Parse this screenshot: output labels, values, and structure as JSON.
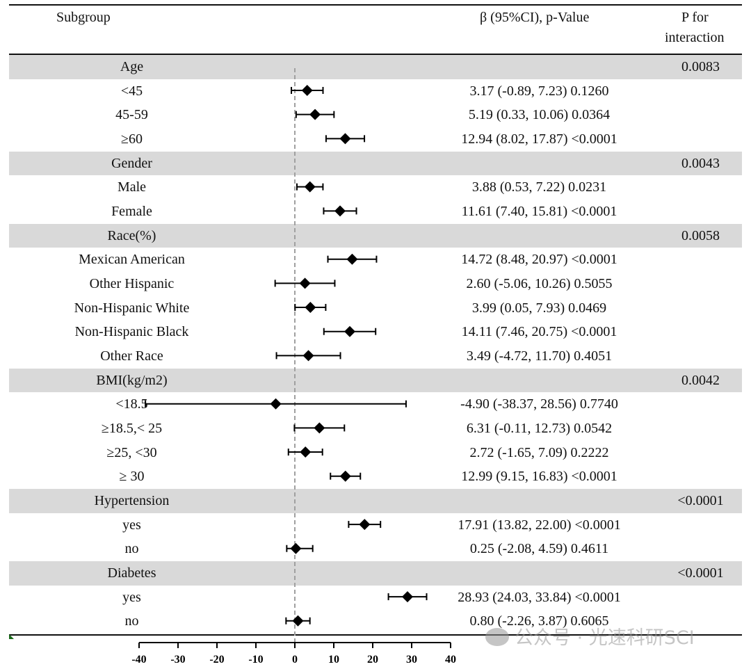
{
  "chart_data": {
    "type": "forest",
    "xlim": [
      -40,
      40
    ],
    "ticks": [
      -40,
      -30,
      -20,
      -10,
      0,
      10,
      20,
      30,
      40
    ],
    "reference_line": 0,
    "header": {
      "subgroup": "Subgroup",
      "estimate": "β (95%CI), p-Value",
      "p_interaction_line1": "P for",
      "p_interaction_line2": "interaction"
    },
    "rows": [
      {
        "type": "group",
        "label": "Age",
        "p_interaction": "0.0083"
      },
      {
        "type": "item",
        "label": "<45",
        "beta": 3.17,
        "lo": -0.89,
        "hi": 7.23,
        "text": "3.17 (-0.89, 7.23) 0.1260"
      },
      {
        "type": "item",
        "label": "45-59",
        "beta": 5.19,
        "lo": 0.33,
        "hi": 10.06,
        "text": "5.19 (0.33, 10.06) 0.0364"
      },
      {
        "type": "item",
        "label": "≥60",
        "beta": 12.94,
        "lo": 8.02,
        "hi": 17.87,
        "text": "12.94 (8.02, 17.87) <0.0001"
      },
      {
        "type": "group",
        "label": "Gender",
        "p_interaction": "0.0043"
      },
      {
        "type": "item",
        "label": "Male",
        "beta": 3.88,
        "lo": 0.53,
        "hi": 7.22,
        "text": "3.88 (0.53, 7.22) 0.0231"
      },
      {
        "type": "item",
        "label": "Female",
        "beta": 11.61,
        "lo": 7.4,
        "hi": 15.81,
        "text": "11.61 (7.40, 15.81) <0.0001"
      },
      {
        "type": "group",
        "label": "Race(%)",
        "p_interaction": "0.0058"
      },
      {
        "type": "item",
        "label": "Mexican American",
        "beta": 14.72,
        "lo": 8.48,
        "hi": 20.97,
        "text": "14.72 (8.48, 20.97) <0.0001"
      },
      {
        "type": "item",
        "label": "Other Hispanic",
        "beta": 2.6,
        "lo": -5.06,
        "hi": 10.26,
        "text": "2.60 (-5.06, 10.26) 0.5055"
      },
      {
        "type": "item",
        "label": "Non-Hispanic White",
        "beta": 3.99,
        "lo": 0.05,
        "hi": 7.93,
        "text": "3.99 (0.05, 7.93) 0.0469"
      },
      {
        "type": "item",
        "label": "Non-Hispanic Black",
        "beta": 14.11,
        "lo": 7.46,
        "hi": 20.75,
        "text": "14.11 (7.46, 20.75) <0.0001"
      },
      {
        "type": "item",
        "label": "Other Race",
        "beta": 3.49,
        "lo": -4.72,
        "hi": 11.7,
        "text": "3.49 (-4.72, 11.70) 0.4051"
      },
      {
        "type": "group",
        "label": "BMI(kg/m2)",
        "p_interaction": "0.0042"
      },
      {
        "type": "item",
        "label": "<18.5",
        "beta": -4.9,
        "lo": -38.37,
        "hi": 28.56,
        "text": "-4.90 (-38.37, 28.56) 0.7740"
      },
      {
        "type": "item",
        "label": "≥18.5,< 25",
        "beta": 6.31,
        "lo": -0.11,
        "hi": 12.73,
        "text": "6.31 (-0.11, 12.73) 0.0542"
      },
      {
        "type": "item",
        "label": "≥25, <30",
        "beta": 2.72,
        "lo": -1.65,
        "hi": 7.09,
        "text": "2.72 (-1.65, 7.09) 0.2222"
      },
      {
        "type": "item",
        "label": "≥ 30",
        "beta": 12.99,
        "lo": 9.15,
        "hi": 16.83,
        "text": "12.99 (9.15, 16.83) <0.0001"
      },
      {
        "type": "group",
        "label": "Hypertension",
        "p_interaction": "<0.0001"
      },
      {
        "type": "item",
        "label": "yes",
        "beta": 17.91,
        "lo": 13.82,
        "hi": 22.0,
        "text": "17.91 (13.82, 22.00) <0.0001"
      },
      {
        "type": "item",
        "label": "no",
        "beta": 0.25,
        "lo": -2.08,
        "hi": 4.59,
        "text": "0.25 (-2.08, 4.59) 0.4611"
      },
      {
        "type": "group",
        "label": "Diabetes",
        "p_interaction": "<0.0001"
      },
      {
        "type": "item",
        "label": "yes",
        "beta": 28.93,
        "lo": 24.03,
        "hi": 33.84,
        "text": "28.93 (24.03, 33.84) <0.0001"
      },
      {
        "type": "item",
        "label": "no",
        "beta": 0.8,
        "lo": -2.26,
        "hi": 3.87,
        "text": "0.80 (-2.26, 3.87) 0.6065"
      }
    ]
  },
  "colors": {
    "group_band": "#d9d9d9",
    "reference_line": "#a0a0a0",
    "marker": "#000000"
  },
  "watermark": {
    "text": "公众号 · 光速科研SCI",
    "icon": "wechat-icon"
  }
}
